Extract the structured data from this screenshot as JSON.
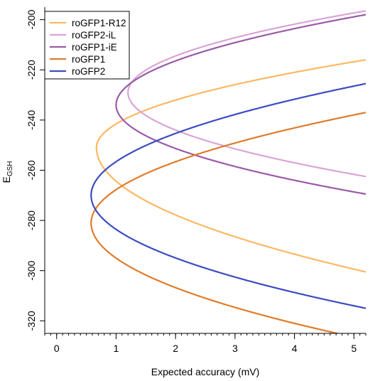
{
  "chart_data": {
    "type": "line",
    "title": "",
    "xlabel": "Expected accuracy (mV)",
    "ylabel": {
      "main": "E",
      "sub": "GSH"
    },
    "xlim": [
      -0.2,
      5.2
    ],
    "ylim": [
      -325,
      -195
    ],
    "x_ticks": [
      0,
      1,
      2,
      3,
      4,
      5
    ],
    "x_minor_step": 0.1,
    "y_ticks": [
      -320,
      -300,
      -280,
      -260,
      -240,
      -220,
      -200
    ],
    "grid": false,
    "legend": {
      "position": "top-left"
    },
    "series": [
      {
        "name": "roGFP1-R12",
        "color": "#FDB863",
        "y_at_min": -251,
        "min_accuracy": 0.67,
        "y_top_at_xmax": -216,
        "y_bottom_at_xmax": -300.5
      },
      {
        "name": "roGFP2-iL",
        "color": "#D9A5D3",
        "y_at_min": -229,
        "min_accuracy": 1.2,
        "y_top_at_xmax": -196.5,
        "y_bottom_at_xmax": -262.5
      },
      {
        "name": "roGFP1-iE",
        "color": "#9A5BA8",
        "y_at_min": -234,
        "min_accuracy": 1.0,
        "y_top_at_xmax": -198,
        "y_bottom_at_xmax": -269.5
      },
      {
        "name": "roGFP1",
        "color": "#E07B2A",
        "y_at_min": -281,
        "min_accuracy": 0.58,
        "y_top_at_xmax": -237,
        "y_bottom_at_xmax": -327.5
      },
      {
        "name": "roGFP2",
        "color": "#3B4CC0",
        "y_at_min": -270,
        "min_accuracy": 0.58,
        "y_top_at_xmax": -225.5,
        "y_bottom_at_xmax": -315
      }
    ]
  }
}
